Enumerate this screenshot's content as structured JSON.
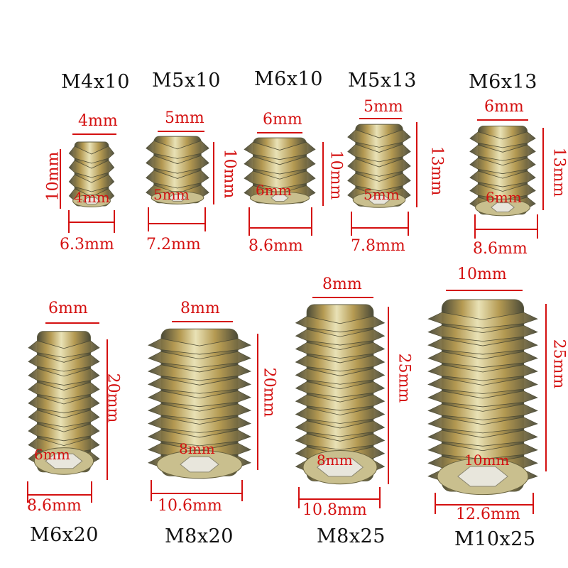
{
  "colors": {
    "dimension": "#d41010",
    "label": "#111111",
    "brass": "#b59a52",
    "shadow": "#4a4a38",
    "highlight": "#e9e2b6"
  },
  "inserts": [
    {
      "size": "M4x10",
      "top": "4mm",
      "height": "10mm",
      "inner": "4mm",
      "outer": "6.3mm"
    },
    {
      "size": "M5x10",
      "top": "5mm",
      "height": "10mm",
      "inner": "5mm",
      "outer": "7.2mm"
    },
    {
      "size": "M6x10",
      "top": "6mm",
      "height": "10mm",
      "inner": "6mm",
      "outer": "8.6mm"
    },
    {
      "size": "M5x13",
      "top": "5mm",
      "height": "13mm",
      "inner": "5mm",
      "outer": "7.8mm"
    },
    {
      "size": "M6x13",
      "top": "6mm",
      "height": "13mm",
      "inner": "6mm",
      "outer": "8.6mm"
    },
    {
      "size": "M6x20",
      "top": "6mm",
      "height": "20mm",
      "inner": "6mm",
      "outer": "8.6mm"
    },
    {
      "size": "M8x20",
      "top": "8mm",
      "height": "20mm",
      "inner": "8mm",
      "outer": "10.6mm"
    },
    {
      "size": "M8x25",
      "top": "8mm",
      "height": "25mm",
      "inner": "8mm",
      "outer": "10.8mm"
    },
    {
      "size": "M10x25",
      "top": "10mm",
      "height": "25mm",
      "inner": "10mm",
      "outer": "12.6mm"
    }
  ]
}
